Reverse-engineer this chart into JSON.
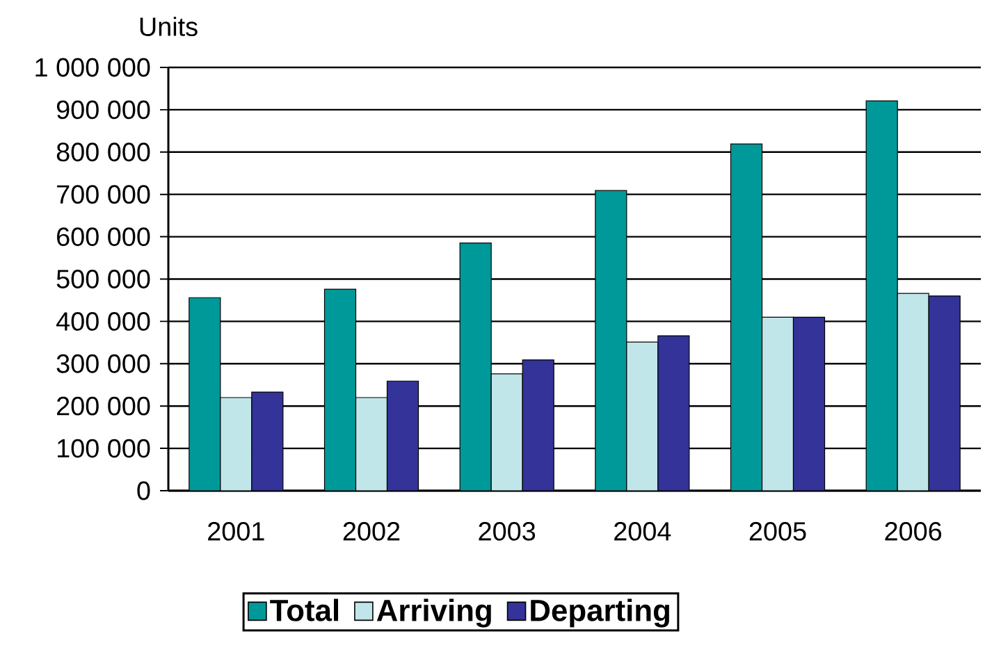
{
  "chart_data": {
    "type": "bar",
    "ylabel": "Units",
    "categories": [
      "2001",
      "2002",
      "2003",
      "2004",
      "2005",
      "2006"
    ],
    "series": [
      {
        "name": "Total",
        "color": "#009999",
        "values": [
          456000,
          476000,
          585000,
          709000,
          819000,
          921000
        ]
      },
      {
        "name": "Arriving",
        "color": "#c0e6ea",
        "values": [
          220000,
          220000,
          276000,
          351000,
          410000,
          466000
        ]
      },
      {
        "name": "Departing",
        "color": "#333399",
        "values": [
          233000,
          259000,
          309000,
          366000,
          410000,
          460000
        ]
      }
    ],
    "ylim": [
      0,
      1000000
    ],
    "yticks": [
      0,
      {
        "value": 100000,
        "label": "100 000"
      },
      {
        "value": 200000,
        "label": "200 000"
      },
      {
        "value": 300000,
        "label": "300 000"
      },
      {
        "value": 400000,
        "label": "400 000"
      },
      {
        "value": 500000,
        "label": "500 000"
      },
      {
        "value": 600000,
        "label": "600 000"
      },
      {
        "value": 700000,
        "label": "700 000"
      },
      {
        "value": 800000,
        "label": "800 000"
      },
      {
        "value": 900000,
        "label": "900 000"
      },
      {
        "value": 1000000,
        "label": "1 000 000"
      }
    ],
    "grid": "y",
    "legend": "bottom"
  }
}
